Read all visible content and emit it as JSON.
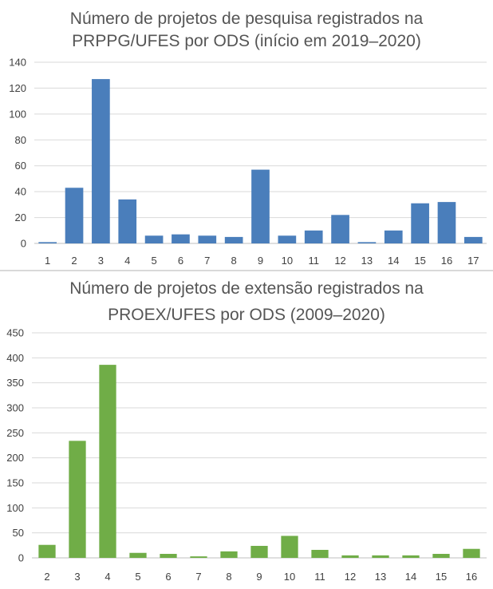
{
  "chart_data": [
    {
      "type": "bar",
      "title_lines": [
        "Número de projetos de pesquisa registrados na",
        "PRPPG/UFES por ODS (início em 2019–2020)"
      ],
      "categories": [
        "1",
        "2",
        "3",
        "4",
        "5",
        "6",
        "7",
        "8",
        "9",
        "10",
        "11",
        "12",
        "13",
        "14",
        "15",
        "16",
        "17"
      ],
      "values": [
        1,
        43,
        127,
        34,
        6,
        7,
        6,
        5,
        57,
        6,
        10,
        22,
        1,
        10,
        31,
        32,
        5
      ],
      "ylim": [
        0,
        140
      ],
      "yticks": [
        0,
        20,
        40,
        60,
        80,
        100,
        120,
        140
      ],
      "color": "#4a7ebb",
      "grid": true
    },
    {
      "type": "bar",
      "title_lines": [
        "Número de projetos de extensão registrados na",
        "PROEX/UFES por ODS (2009–2020)"
      ],
      "categories": [
        "2",
        "3",
        "4",
        "5",
        "6",
        "7",
        "8",
        "9",
        "10",
        "11",
        "12",
        "13",
        "14",
        "15",
        "16"
      ],
      "values": [
        26,
        234,
        386,
        10,
        8,
        3,
        13,
        24,
        44,
        16,
        5,
        5,
        5,
        8,
        18
      ],
      "ylim": [
        0,
        450
      ],
      "yticks": [
        0,
        50,
        100,
        150,
        200,
        250,
        300,
        350,
        400,
        450
      ],
      "color": "#70ad47",
      "grid": true
    }
  ]
}
